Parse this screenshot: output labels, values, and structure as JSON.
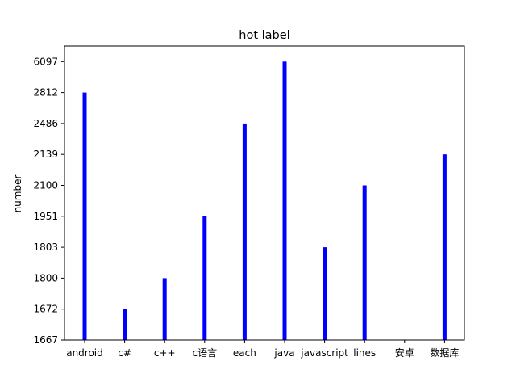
{
  "chart_data": {
    "type": "bar",
    "title": "hot label",
    "xlabel": "",
    "ylabel": "number",
    "categories": [
      "android",
      "c#",
      "c++",
      "c语言",
      "each",
      "java",
      "javascript",
      "lines",
      "安卓",
      "数据库"
    ],
    "values": [
      2812,
      1672,
      1800,
      1951,
      2486,
      6097,
      1803,
      2100,
      null,
      2139
    ],
    "y_axis_kind": "categorical",
    "y_ticks": [
      "1667",
      "1672",
      "1800",
      "1803",
      "1951",
      "2100",
      "2139",
      "2486",
      "2812",
      "6097"
    ],
    "bar_color": "#0000ff",
    "grid": false,
    "legend": "none"
  }
}
